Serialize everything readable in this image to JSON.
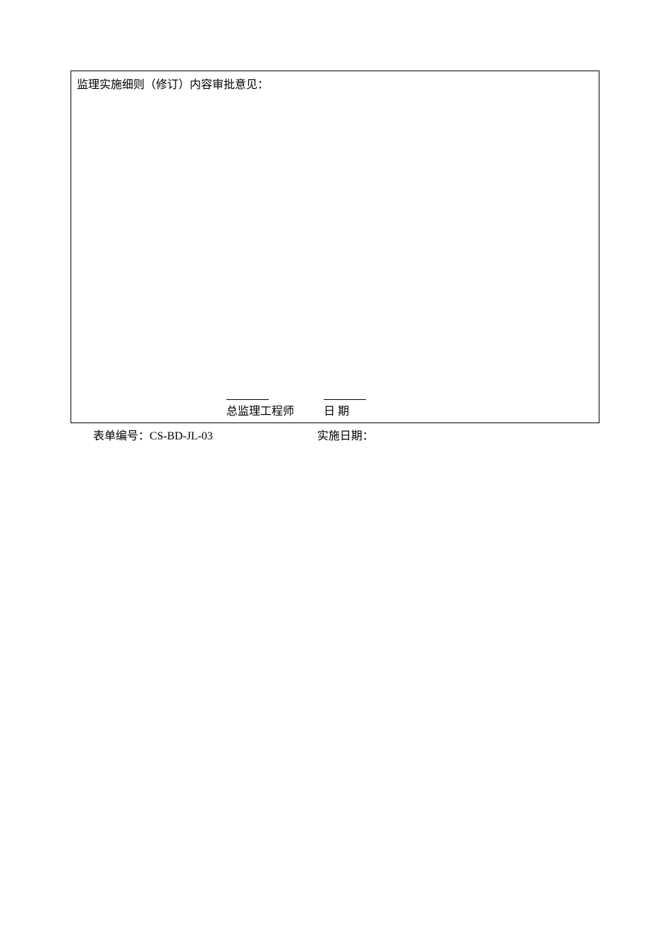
{
  "form": {
    "title": "监理实施细则（修订）内容审批意见：",
    "signature": {
      "engineer_label": "总监理工程师",
      "date_label": "日 期"
    }
  },
  "footer": {
    "form_number_label": "表单编号：",
    "form_number_value": "CS-BD-JL-03",
    "implementation_date_label": "实施日期："
  },
  "style": {
    "background_color": "#ffffff",
    "border_color": "#000000",
    "text_color": "#000000",
    "font_size_main": 16,
    "font_family": "SimSun"
  }
}
